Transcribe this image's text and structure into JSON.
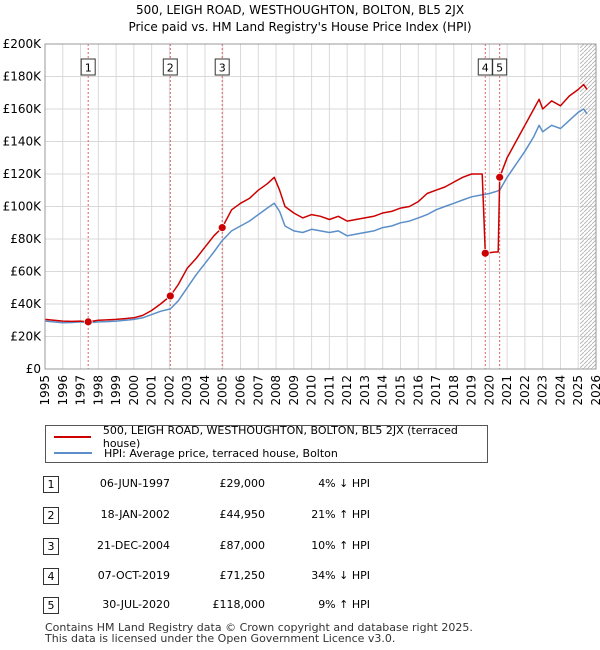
{
  "chart_data": {
    "type": "line",
    "title": "500, LEIGH ROAD, WESTHOUGHTON, BOLTON, BL5 2JX",
    "subtitle": "Price paid vs. HM Land Registry's House Price Index (HPI)",
    "xlim": [
      1995,
      2026
    ],
    "ylim": [
      0,
      200000
    ],
    "y_ticks": [
      0,
      20000,
      40000,
      60000,
      80000,
      100000,
      120000,
      140000,
      160000,
      180000,
      200000
    ],
    "y_tick_labels": [
      "£0",
      "£20K",
      "£40K",
      "£60K",
      "£80K",
      "£100K",
      "£120K",
      "£140K",
      "£160K",
      "£180K",
      "£200K"
    ],
    "x_ticks": [
      1995,
      1996,
      1997,
      1998,
      1999,
      2000,
      2001,
      2002,
      2003,
      2004,
      2005,
      2006,
      2007,
      2008,
      2009,
      2010,
      2011,
      2012,
      2013,
      2014,
      2015,
      2016,
      2017,
      2018,
      2019,
      2020,
      2021,
      2022,
      2023,
      2024,
      2025,
      2026
    ],
    "x_tick_labels": [
      "1995",
      "1996",
      "1997",
      "1998",
      "1999",
      "2000",
      "2001",
      "2002",
      "2003",
      "2004",
      "2005",
      "2006",
      "2007",
      "2008",
      "2009",
      "2010",
      "2011",
      "2012",
      "2013",
      "2014",
      "2015",
      "2016",
      "2017",
      "2018",
      "2019",
      "2020",
      "2021",
      "2022",
      "2023",
      "2024",
      "2025",
      "2026"
    ],
    "series": [
      {
        "name": "500, LEIGH ROAD, WESTHOUGHTON, BOLTON, BL5 2JX (terraced house)",
        "color": "#cc0000",
        "x": [
          1995.0,
          1995.5,
          1996.0,
          1996.5,
          1997.0,
          1997.43,
          1998.0,
          1998.5,
          1999.0,
          1999.5,
          2000.0,
          2000.5,
          2001.0,
          2001.5,
          2002.05,
          2002.5,
          2003.0,
          2003.5,
          2004.0,
          2004.5,
          2004.97,
          2005.5,
          2006.0,
          2006.5,
          2007.0,
          2007.5,
          2007.9,
          2008.2,
          2008.5,
          2009.0,
          2009.5,
          2010.0,
          2010.5,
          2011.0,
          2011.5,
          2012.0,
          2012.5,
          2013.0,
          2013.5,
          2014.0,
          2014.5,
          2015.0,
          2015.5,
          2016.0,
          2016.5,
          2017.0,
          2017.5,
          2018.0,
          2018.5,
          2019.0,
          2019.3,
          2019.6,
          2019.77,
          2020.0,
          2020.3,
          2020.5,
          2020.58,
          2021.0,
          2021.5,
          2022.0,
          2022.5,
          2022.8,
          2023.0,
          2023.5,
          2024.0,
          2024.5,
          2025.0,
          2025.3,
          2025.5
        ],
        "y": [
          30500,
          30000,
          29500,
          29300,
          29500,
          29000,
          30000,
          30200,
          30500,
          31000,
          31500,
          33000,
          36000,
          40000,
          44950,
          52000,
          62000,
          68000,
          75000,
          82000,
          87000,
          98000,
          102000,
          105000,
          110000,
          114000,
          118000,
          110000,
          100000,
          96000,
          93000,
          95000,
          94000,
          92000,
          94000,
          91000,
          92000,
          93000,
          94000,
          96000,
          97000,
          99000,
          100000,
          103000,
          108000,
          110000,
          112000,
          115000,
          118000,
          120000,
          120000,
          120000,
          71250,
          71500,
          72000,
          72000,
          118000,
          130000,
          140000,
          150000,
          160000,
          166000,
          160000,
          165000,
          162000,
          168000,
          172000,
          175000,
          172000
        ]
      },
      {
        "name": "HPI: Average price, terraced house, Bolton",
        "color": "#5b8fc9",
        "x": [
          1995.0,
          1995.5,
          1996.0,
          1996.5,
          1997.0,
          1997.43,
          1998.0,
          1998.5,
          1999.0,
          1999.5,
          2000.0,
          2000.5,
          2001.0,
          2001.5,
          2002.05,
          2002.5,
          2003.0,
          2003.5,
          2004.0,
          2004.5,
          2004.97,
          2005.5,
          2006.0,
          2006.5,
          2007.0,
          2007.5,
          2007.9,
          2008.2,
          2008.5,
          2009.0,
          2009.5,
          2010.0,
          2010.5,
          2011.0,
          2011.5,
          2012.0,
          2012.5,
          2013.0,
          2013.5,
          2014.0,
          2014.5,
          2015.0,
          2015.5,
          2016.0,
          2016.5,
          2017.0,
          2017.5,
          2018.0,
          2018.5,
          2019.0,
          2019.5,
          2019.77,
          2020.0,
          2020.3,
          2020.58,
          2021.0,
          2021.5,
          2022.0,
          2022.5,
          2022.8,
          2023.0,
          2023.5,
          2024.0,
          2024.5,
          2025.0,
          2025.3,
          2025.5
        ],
        "y": [
          29500,
          29000,
          28500,
          28600,
          29000,
          28500,
          29000,
          29200,
          29500,
          30000,
          30500,
          31500,
          33500,
          35500,
          37000,
          42000,
          50000,
          58000,
          65000,
          72000,
          79000,
          85000,
          88000,
          91000,
          95000,
          99000,
          102000,
          97000,
          88000,
          85000,
          84000,
          86000,
          85000,
          84000,
          85000,
          82000,
          83000,
          84000,
          85000,
          87000,
          88000,
          90000,
          91000,
          93000,
          95000,
          98000,
          100000,
          102000,
          104000,
          106000,
          107000,
          107500,
          108000,
          109000,
          110000,
          118000,
          126000,
          134000,
          143000,
          150000,
          146000,
          150000,
          148000,
          153000,
          158000,
          160000,
          157000
        ]
      }
    ],
    "transactions": [
      {
        "label": "1",
        "x": 1997.43,
        "price": 29000
      },
      {
        "label": "2",
        "x": 2002.05,
        "price": 44950
      },
      {
        "label": "3",
        "x": 2004.97,
        "price": 87000
      },
      {
        "label": "4",
        "x": 2019.77,
        "price": 71250
      },
      {
        "label": "5",
        "x": 2020.58,
        "price": 118000
      }
    ],
    "hatch_from_x": 2025.1,
    "grid": true
  },
  "legend": {
    "red_label": "500, LEIGH ROAD, WESTHOUGHTON, BOLTON, BL5 2JX (terraced house)",
    "blue_label": "HPI: Average price, terraced house, Bolton"
  },
  "table": [
    {
      "num": "1",
      "date": "06-JUN-1997",
      "price": "£29,000",
      "delta": "4% ↓ HPI"
    },
    {
      "num": "2",
      "date": "18-JAN-2002",
      "price": "£44,950",
      "delta": "21% ↑ HPI"
    },
    {
      "num": "3",
      "date": "21-DEC-2004",
      "price": "£87,000",
      "delta": "10% ↑ HPI"
    },
    {
      "num": "4",
      "date": "07-OCT-2019",
      "price": "£71,250",
      "delta": "34% ↓ HPI"
    },
    {
      "num": "5",
      "date": "30-JUL-2020",
      "price": "£118,000",
      "delta": "9% ↑ HPI"
    }
  ],
  "footer": {
    "line1": "Contains HM Land Registry data © Crown copyright and database right 2025.",
    "line2": "This data is licensed under the Open Government Licence v3.0."
  }
}
